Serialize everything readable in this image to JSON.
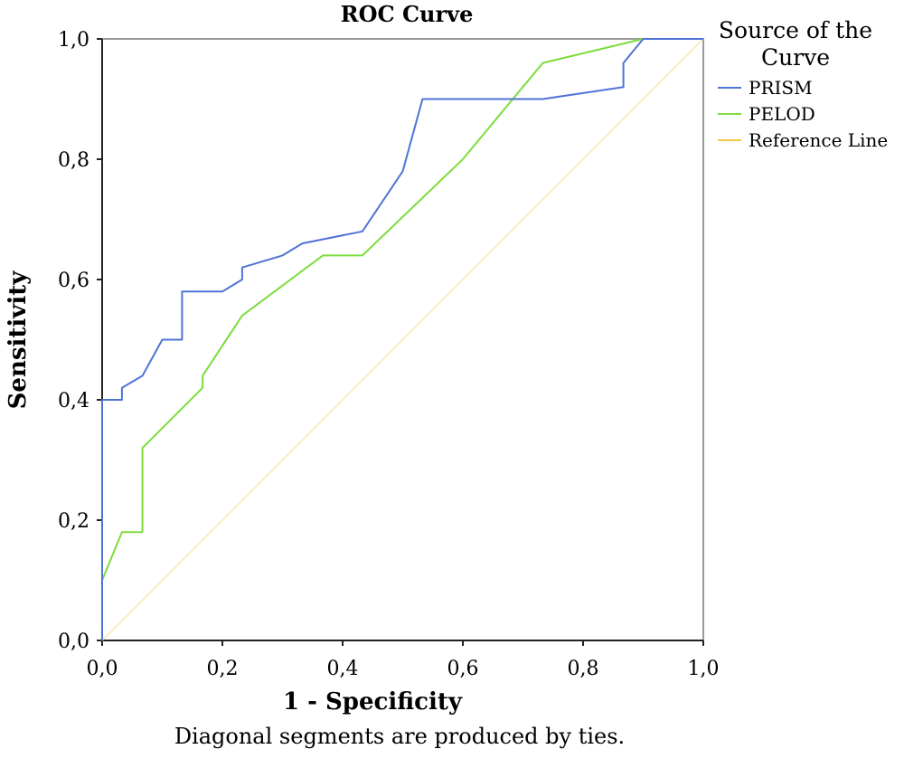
{
  "chart_data": {
    "type": "line",
    "title": "ROC Curve",
    "xlabel": "1 - Specificity",
    "ylabel": "Sensitivity",
    "footnote": "Diagonal segments are produced by ties.",
    "xlim": [
      0,
      1
    ],
    "ylim": [
      0,
      1
    ],
    "x_ticks": [
      "0,0",
      "0,2",
      "0,4",
      "0,6",
      "0,8",
      "1,0"
    ],
    "y_ticks": [
      "0,0",
      "0,2",
      "0,4",
      "0,6",
      "0,8",
      "1,0"
    ],
    "grid": false,
    "legend": {
      "title_lines": [
        "Source of the",
        "Curve"
      ],
      "position": "right"
    },
    "series": [
      {
        "name": "PRISM",
        "color": "#4f73d6",
        "points": [
          [
            0,
            0
          ],
          [
            0,
            0.4
          ],
          [
            0.033,
            0.4
          ],
          [
            0.033,
            0.42
          ],
          [
            0.067,
            0.44
          ],
          [
            0.1,
            0.5
          ],
          [
            0.133,
            0.5
          ],
          [
            0.133,
            0.58
          ],
          [
            0.2,
            0.58
          ],
          [
            0.233,
            0.6
          ],
          [
            0.233,
            0.62
          ],
          [
            0.3,
            0.64
          ],
          [
            0.333,
            0.66
          ],
          [
            0.433,
            0.68
          ],
          [
            0.5,
            0.78
          ],
          [
            0.533,
            0.9
          ],
          [
            0.733,
            0.9
          ],
          [
            0.867,
            0.92
          ],
          [
            0.867,
            0.96
          ],
          [
            0.9,
            1.0
          ],
          [
            1.0,
            1.0
          ]
        ]
      },
      {
        "name": "PELOD",
        "color": "#7ddc3c",
        "points": [
          [
            0,
            0
          ],
          [
            0,
            0.1
          ],
          [
            0.033,
            0.18
          ],
          [
            0.067,
            0.18
          ],
          [
            0.067,
            0.32
          ],
          [
            0.167,
            0.42
          ],
          [
            0.167,
            0.44
          ],
          [
            0.233,
            0.54
          ],
          [
            0.367,
            0.64
          ],
          [
            0.433,
            0.64
          ],
          [
            0.6,
            0.8
          ],
          [
            0.733,
            0.96
          ],
          [
            0.9,
            1.0
          ],
          [
            1.0,
            1.0
          ]
        ]
      },
      {
        "name": "Reference Line",
        "color": "#f3e9a6",
        "legend_color": "#f2c84b",
        "points": [
          [
            0,
            0
          ],
          [
            1,
            1
          ]
        ]
      }
    ]
  }
}
